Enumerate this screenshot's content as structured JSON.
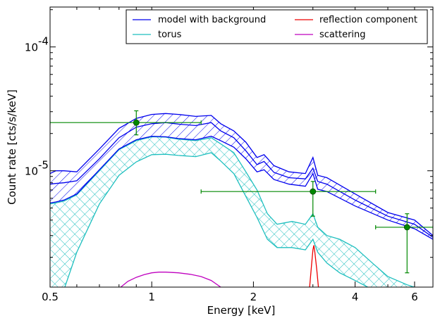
{
  "chart_data": {
    "type": "line",
    "xlabel": "Energy [keV]",
    "ylabel": "Count rate [cts/s/keV]",
    "xscale": "log",
    "yscale": "log",
    "xlim": [
      0.5,
      6.8
    ],
    "ylim": [
      1.15e-06,
      0.00021
    ],
    "x_ticks": [
      {
        "value": 0.5,
        "label": "0.5"
      },
      {
        "value": 1,
        "label": "1"
      },
      {
        "value": 2,
        "label": "2"
      },
      {
        "value": 4,
        "label": "4"
      },
      {
        "value": 6,
        "label": "6"
      }
    ],
    "y_ticks": [
      {
        "value": 1e-05,
        "mantissa": "10",
        "exponent": "-5"
      },
      {
        "value": 0.0001,
        "mantissa": "10",
        "exponent": "-4"
      }
    ],
    "colors": {
      "model": "#0000ee",
      "torus": "#1fbfbf",
      "reflection": "#ee0000",
      "scattering": "#bf00bf",
      "data": "#008800"
    },
    "legend": {
      "placement": "top-right",
      "entries": [
        {
          "label": "model with background",
          "color": "#0000ee"
        },
        {
          "label": "reflection component",
          "color": "#ee0000"
        },
        {
          "label": "torus",
          "color": "#1fbfbf"
        },
        {
          "label": "scattering",
          "color": "#bf00bf"
        }
      ]
    },
    "series": [
      {
        "name": "model with background",
        "color": "#0000ee",
        "band": true,
        "x": [
          0.5,
          0.52,
          0.55,
          0.6,
          0.7,
          0.8,
          0.9,
          1.0,
          1.1,
          1.2,
          1.35,
          1.5,
          1.6,
          1.75,
          1.9,
          2.05,
          2.15,
          2.3,
          2.55,
          2.85,
          3.0,
          3.1,
          3.3,
          4.0,
          5.0,
          6.0,
          6.8
        ],
        "upper": [
          9.5e-06,
          1e-05,
          1e-05,
          9.8e-06,
          1.5e-05,
          2.2e-05,
          2.65e-05,
          2.85e-05,
          2.9e-05,
          2.85e-05,
          2.75e-05,
          2.8e-05,
          2.4e-05,
          2.1e-05,
          1.7e-05,
          1.28e-05,
          1.35e-05,
          1.1e-05,
          9.8e-06,
          9.5e-06,
          1.28e-05,
          9.2e-06,
          8.8e-06,
          6.5e-06,
          4.6e-06,
          4e-06,
          3e-06
        ],
        "mid": [
          7.8e-06,
          7.9e-06,
          8e-06,
          8.3e-06,
          1.25e-05,
          1.85e-05,
          2.25e-05,
          2.4e-05,
          2.45e-05,
          2.38e-05,
          2.32e-05,
          2.45e-05,
          2.1e-05,
          1.85e-05,
          1.45e-05,
          1.12e-05,
          1.19e-05,
          9.7e-06,
          8.8e-06,
          8.6e-06,
          1.05e-05,
          8.2e-06,
          7.8e-06,
          5.8e-06,
          4.3e-06,
          3.7e-06,
          2.9e-06
        ],
        "lower": [
          5.5e-06,
          5.6e-06,
          5.8e-06,
          6.5e-06,
          1.02e-05,
          1.5e-05,
          1.78e-05,
          1.9e-05,
          1.88e-05,
          1.82e-05,
          1.78e-05,
          1.9e-05,
          1.75e-05,
          1.55e-05,
          1.25e-05,
          9.8e-06,
          1.02e-05,
          8.5e-06,
          7.8e-06,
          7.5e-06,
          9.5e-06,
          7.1e-06,
          6.8e-06,
          5.2e-06,
          4e-06,
          3.4e-06,
          2.8e-06
        ]
      },
      {
        "name": "torus",
        "color": "#1fbfbf",
        "band": true,
        "x": [
          0.5,
          0.52,
          0.55,
          0.6,
          0.7,
          0.8,
          0.9,
          1.0,
          1.1,
          1.2,
          1.35,
          1.5,
          1.6,
          1.75,
          1.9,
          2.05,
          2.2,
          2.35,
          2.6,
          2.85,
          3.0,
          3.1,
          3.3,
          3.6,
          4.0,
          4.5,
          5.0,
          5.7,
          6.3,
          6.8
        ],
        "upper": [
          5.4e-06,
          5.5e-06,
          5.7e-06,
          6.4e-06,
          1e-05,
          1.48e-05,
          1.75e-05,
          1.88e-05,
          1.87e-05,
          1.8e-05,
          1.75e-05,
          1.85e-05,
          1.65e-05,
          1.4e-05,
          9.8e-06,
          7e-06,
          4.5e-06,
          3.7e-06,
          3.9e-06,
          3.7e-06,
          4.5e-06,
          3.5e-06,
          3e-06,
          2.8e-06,
          2.4e-06,
          1.8e-06,
          1.4e-06,
          1.2e-06,
          1.1e-06,
          1.05e-06
        ],
        "lower": [
          1.1e-06,
          1.1e-06,
          1.1e-06,
          2.2e-06,
          5.4e-06,
          9.2e-06,
          1.18e-05,
          1.35e-05,
          1.36e-05,
          1.33e-05,
          1.3e-05,
          1.4e-05,
          1.2e-05,
          9.5e-06,
          6.2e-06,
          4.2e-06,
          2.8e-06,
          2.4e-06,
          2.4e-06,
          2.3e-06,
          2.8e-06,
          2.2e-06,
          1.8e-06,
          1.5e-06,
          1.3e-06,
          1.1e-06,
          1e-06,
          9e-07,
          9e-07,
          9e-07
        ]
      },
      {
        "name": "reflection component",
        "color": "#ee0000",
        "x": [
          2.93,
          2.97,
          3.0,
          3.02,
          3.04,
          3.08,
          3.12
        ],
        "y": [
          1.1e-06,
          1.7e-06,
          2.3e-06,
          2.5e-06,
          2.2e-06,
          1.6e-06,
          1.1e-06
        ]
      },
      {
        "name": "scattering",
        "color": "#bf00bf",
        "x": [
          0.8,
          0.85,
          0.9,
          0.95,
          1.0,
          1.05,
          1.1,
          1.2,
          1.3,
          1.4,
          1.5,
          1.6
        ],
        "y": [
          1.12e-06,
          1.28e-06,
          1.38e-06,
          1.45e-06,
          1.5e-06,
          1.52e-06,
          1.52e-06,
          1.5e-06,
          1.46e-06,
          1.4e-06,
          1.3e-06,
          1.15e-06
        ]
      }
    ],
    "data_points": [
      {
        "x": 0.9,
        "y": 2.45e-05,
        "xerr": [
          0.5,
          1.4
        ],
        "yerr": [
          1.95e-05,
          3.05e-05
        ]
      },
      {
        "x": 3.0,
        "y": 6.8e-06,
        "xerr": [
          1.4,
          4.6
        ],
        "yerr": [
          4.3e-06,
          8.2e-06
        ]
      },
      {
        "x": 5.7,
        "y": 3.5e-06,
        "xerr": [
          4.6,
          6.8
        ],
        "yerr": [
          1.5e-06,
          4.5e-06
        ]
      }
    ]
  }
}
